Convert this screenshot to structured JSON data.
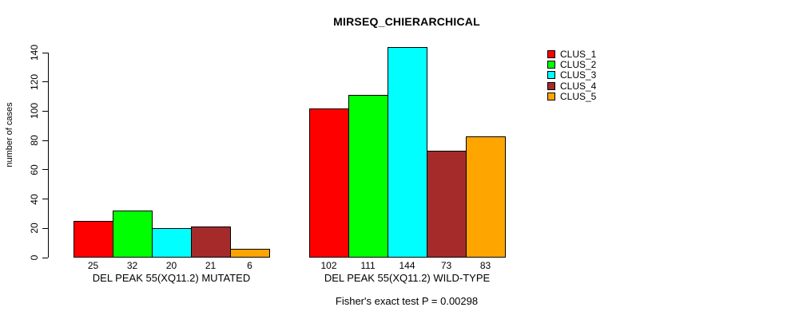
{
  "chart_data": {
    "type": "bar",
    "title": "MIRSEQ_CHIERARCHICAL",
    "ylabel": "number of cases",
    "xlabel": "",
    "ylim": [
      0,
      140
    ],
    "yticks": [
      0,
      20,
      40,
      60,
      80,
      100,
      120,
      140
    ],
    "grid": false,
    "legend_position": "top-right",
    "categories": [
      "DEL PEAK 55(XQ11.2) MUTATED",
      "DEL PEAK 55(XQ11.2) WILD-TYPE"
    ],
    "series": [
      {
        "name": "CLUS_1",
        "color": "#FF0000",
        "values": [
          25,
          102
        ]
      },
      {
        "name": "CLUS_2",
        "color": "#00FF00",
        "values": [
          32,
          111
        ]
      },
      {
        "name": "CLUS_3",
        "color": "#00FFFF",
        "values": [
          20,
          144
        ]
      },
      {
        "name": "CLUS_4",
        "color": "#A52A2A",
        "values": [
          21,
          73
        ]
      },
      {
        "name": "CLUS_5",
        "color": "#FFA500",
        "values": [
          6,
          83
        ]
      }
    ],
    "bar_value_labels_shown": true,
    "note": "Fisher's exact test P = 0.00298"
  }
}
